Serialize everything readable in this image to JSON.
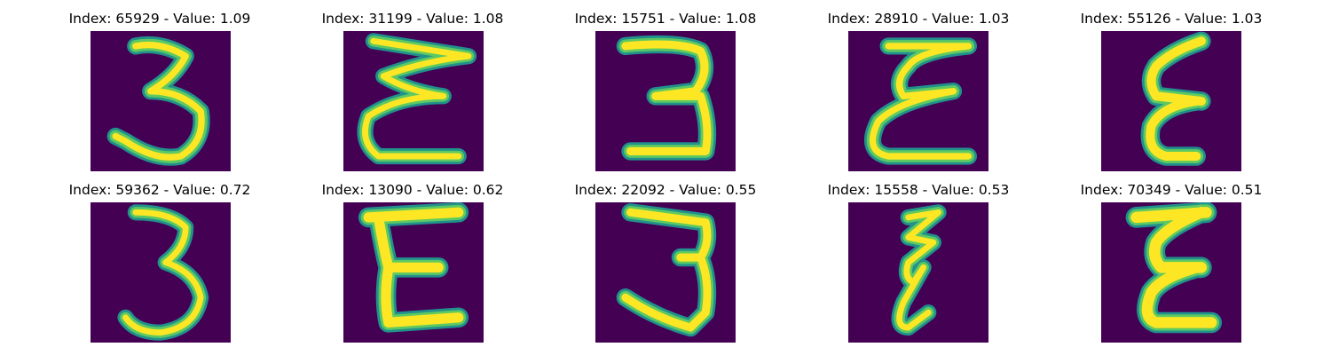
{
  "colors": {
    "background": "#440154",
    "stroke_core": "#fde725",
    "stroke_mid": "#5ec962",
    "stroke_edge": "#21918c"
  },
  "panels": [
    {
      "title": "Index: 65929 - Value: 1.09",
      "glyph": "3-open-cursive"
    },
    {
      "title": "Index: 31199 - Value: 1.08",
      "glyph": "3-wide-flat-top"
    },
    {
      "title": "Index: 15751 - Value: 1.08",
      "glyph": "3-block"
    },
    {
      "title": "Index: 28910 - Value: 1.03",
      "glyph": "3-epsilon-wide"
    },
    {
      "title": "Index: 55126 - Value: 1.03",
      "glyph": "3-epsilon-narrow"
    },
    {
      "title": "Index: 59362 - Value: 0.72",
      "glyph": "3-standard"
    },
    {
      "title": "Index: 13090 - Value: 0.62",
      "glyph": "3-thick-e"
    },
    {
      "title": "Index: 22092 - Value: 0.55",
      "glyph": "3-slanted"
    },
    {
      "title": "Index: 15558 - Value: 0.53",
      "glyph": "3-zigzag"
    },
    {
      "title": "Index: 70349 - Value: 0.51",
      "glyph": "3-bold-e"
    }
  ]
}
